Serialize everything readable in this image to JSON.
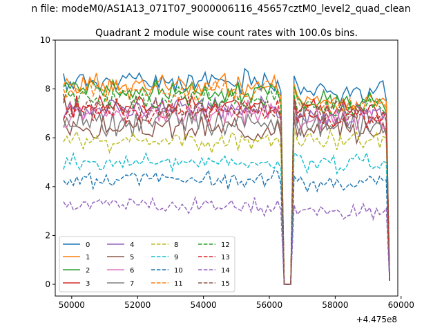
{
  "chart_data": {
    "type": "line",
    "suptitle": "n file: modeM0/AS1A13_071T07_9000006116_45657cztM0_level2_quad_clean",
    "title": "Quadrant 2 module wise count rates with 100.0s bins.",
    "xlabel": "",
    "ylabel": "",
    "x_offset_label": "+4.475e8",
    "xlim": [
      49500,
      59900
    ],
    "ylim": [
      -0.48,
      10
    ],
    "x_ticks": [
      50000,
      52000,
      54000,
      56000,
      58000,
      60000
    ],
    "x_tick_labels": [
      "50000",
      "52000",
      "54000",
      "56000",
      "58000",
      "60000"
    ],
    "y_ticks": [
      0,
      2,
      4,
      6,
      8,
      10
    ],
    "y_tick_labels": [
      "0",
      "2",
      "4",
      "6",
      "8",
      "10"
    ],
    "x_start": 49750,
    "x_step": 100,
    "gap_start": 56450,
    "gap_end": 56650,
    "x_end": 59650,
    "grid": false,
    "legend_position": "lower-left",
    "series": [
      {
        "name": "0",
        "dash": "solid",
        "color": "#1f77b4",
        "mean": 8.3,
        "post_mean": 7.9,
        "jitter": 0.25,
        "seed": 11
      },
      {
        "name": "1",
        "dash": "solid",
        "color": "#ff7f0e",
        "mean": 8.1,
        "post_mean": 7.6,
        "jitter": 0.25,
        "seed": 23
      },
      {
        "name": "2",
        "dash": "solid",
        "color": "#2ca02c",
        "mean": 7.9,
        "post_mean": 7.5,
        "jitter": 0.22,
        "seed": 37
      },
      {
        "name": "3",
        "dash": "solid",
        "color": "#d62728",
        "mean": 7.3,
        "post_mean": 7.1,
        "jitter": 0.25,
        "seed": 41
      },
      {
        "name": "4",
        "dash": "solid",
        "color": "#9467bd",
        "mean": 7.2,
        "post_mean": 6.9,
        "jitter": 0.25,
        "seed": 53
      },
      {
        "name": "5",
        "dash": "solid",
        "color": "#8c564b",
        "mean": 6.4,
        "post_mean": 6.3,
        "jitter": 0.25,
        "seed": 67
      },
      {
        "name": "6",
        "dash": "solid",
        "color": "#e377c2",
        "mean": 7.0,
        "post_mean": 6.8,
        "jitter": 0.25,
        "seed": 71
      },
      {
        "name": "7",
        "dash": "solid",
        "color": "#7f7f7f",
        "mean": 6.7,
        "post_mean": 6.5,
        "jitter": 0.3,
        "seed": 83
      },
      {
        "name": "8",
        "dash": "dashed",
        "color": "#bcbd22",
        "mean": 5.9,
        "post_mean": 5.9,
        "jitter": 0.22,
        "seed": 97
      },
      {
        "name": "9",
        "dash": "dashed",
        "color": "#17becf",
        "mean": 5.0,
        "post_mean": 5.0,
        "jitter": 0.2,
        "seed": 101
      },
      {
        "name": "10",
        "dash": "dashed",
        "color": "#1f77b4",
        "mean": 4.3,
        "post_mean": 4.1,
        "jitter": 0.18,
        "seed": 113
      },
      {
        "name": "11",
        "dash": "dashed",
        "color": "#ff7f0e",
        "mean": 7.9,
        "post_mean": 7.4,
        "jitter": 0.25,
        "seed": 127
      },
      {
        "name": "12",
        "dash": "dashed",
        "color": "#2ca02c",
        "mean": 7.6,
        "post_mean": 7.2,
        "jitter": 0.22,
        "seed": 131
      },
      {
        "name": "13",
        "dash": "dashed",
        "color": "#d62728",
        "mean": 7.1,
        "post_mean": 6.9,
        "jitter": 0.25,
        "seed": 149
      },
      {
        "name": "14",
        "dash": "dashed",
        "color": "#9467bd",
        "mean": 3.2,
        "post_mean": 3.0,
        "jitter": 0.18,
        "seed": 157
      },
      {
        "name": "15",
        "dash": "dashed",
        "color": "#8c564b",
        "mean": 7.2,
        "post_mean": 7.0,
        "jitter": 0.25,
        "seed": 163
      }
    ]
  }
}
